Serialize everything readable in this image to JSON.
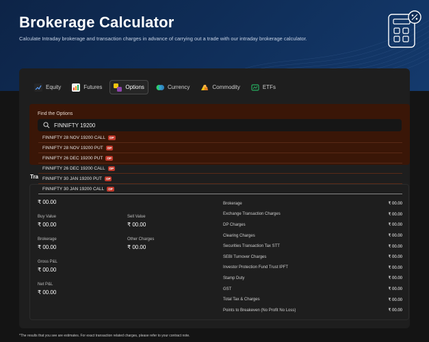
{
  "hero": {
    "title": "Brokerage Calculator",
    "subtitle": "Calculate Intraday brokerage and transaction charges in advance of carrying out a trade with our intraday brokerage calculator."
  },
  "tabs": [
    {
      "label": "Equity",
      "icon": "equity-icon",
      "active": false
    },
    {
      "label": "Futures",
      "icon": "futures-icon",
      "active": false
    },
    {
      "label": "Options",
      "icon": "options-icon",
      "active": true
    },
    {
      "label": "Currency",
      "icon": "currency-icon",
      "active": false
    },
    {
      "label": "Commodity",
      "icon": "commodity-icon",
      "active": false
    },
    {
      "label": "ETFs",
      "icon": "etfs-icon",
      "active": false
    }
  ],
  "find": {
    "label": "Find the Options",
    "search_value": "FINNIFTY 19200"
  },
  "dropdown": [
    {
      "text": "FINNIFTY 28 NOV 19200 CALL",
      "badge": "OP"
    },
    {
      "text": "FINNIFTY 28 NOV 19200 PUT",
      "badge": "OP"
    },
    {
      "text": "FINNIFTY 26 DEC 19200 PUT",
      "badge": "OP"
    },
    {
      "text": "FINNIFTY 26 DEC 19200 CALL",
      "badge": "OP"
    },
    {
      "text": "FINNIFTY 30 JAN 19200 PUT",
      "badge": "OP"
    },
    {
      "text": "FINNIFTY 30 JAN 19200 CALL",
      "badge": "OP"
    }
  ],
  "section_label_partial": "Tra",
  "summary": {
    "top_value": "₹ 00.00",
    "buy_value_label": "Buy Value",
    "buy_value": "₹ 00.00",
    "sell_value_label": "Sell Value",
    "sell_value": "₹ 00.00",
    "brokerage_label": "Brokerage",
    "brokerage_value": "₹ 00.00",
    "other_charges_label": "Other Charges",
    "other_charges_value": "₹ 00.00",
    "gross_pl_label": "Gross P&L",
    "gross_pl_value": "₹ 00.00",
    "net_pl_label": "Net P&L",
    "net_pl_value": "₹ 00.00"
  },
  "charges": [
    {
      "label": "Brokerage",
      "value": "₹ 00.00"
    },
    {
      "label": "Exchange Transaction Charges",
      "value": "₹ 00.00"
    },
    {
      "label": "DP Charges",
      "value": "₹ 00.00"
    },
    {
      "label": "Clearing Charges",
      "value": "₹ 00.00"
    },
    {
      "label": "Securities Transaction Tax STT",
      "value": "₹ 00.00"
    },
    {
      "label": "SEBI Turnover Charges",
      "value": "₹ 00.00"
    },
    {
      "label": "Investor Protection Fund Trust IPFT",
      "value": "₹ 00.00"
    },
    {
      "label": "Stamp Duty",
      "value": "₹ 00.00"
    },
    {
      "label": "GST",
      "value": "₹ 00.00"
    },
    {
      "label": "Total Tax & Charges",
      "value": "₹ 00.00"
    },
    {
      "label": "Points to Breakeven (No Profit No Loss)",
      "value": "₹ 00.00"
    }
  ],
  "footnote": "*The results that you see are estimates. For exact transaction related charges, please refer to your contract note."
}
